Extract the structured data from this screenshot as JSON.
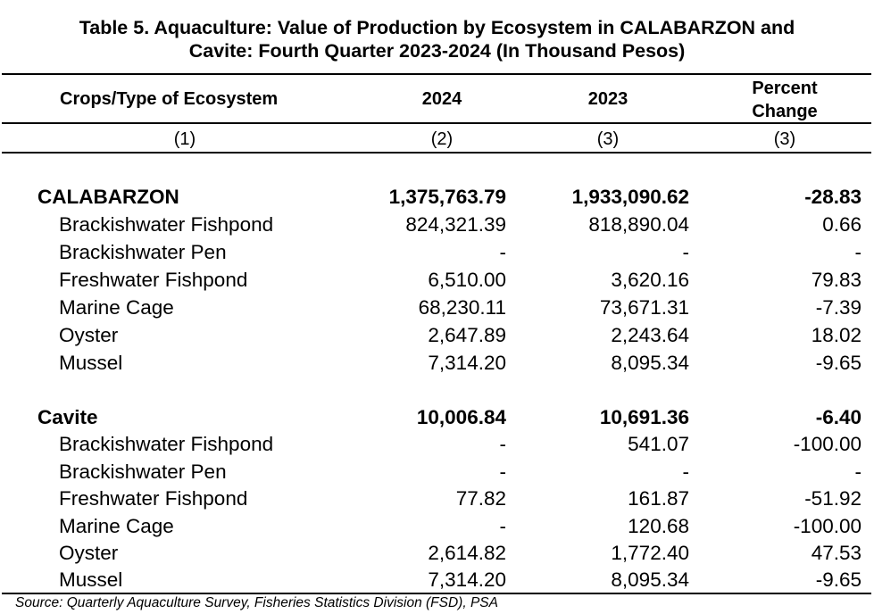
{
  "title_line1": "Table 5. Aquaculture: Value of Production by Ecosystem in CALABARZON and",
  "title_line2": "Cavite: Fourth Quarter 2023-2024 (In Thousand Pesos)",
  "headers": {
    "col0": "Crops/Type of Ecosystem",
    "col1": "2024",
    "col2": "2023",
    "col3_line1": "Percent",
    "col3_line2": "Change"
  },
  "col_numbers": [
    "(1)",
    "(2)",
    "(3)",
    "(3)"
  ],
  "groups": [
    {
      "total": {
        "name": "CALABARZON",
        "v2024": "1,375,763.79",
        "v2023": "1,933,090.62",
        "pct": "-28.83"
      },
      "rows": [
        {
          "name": "Brackishwater Fishpond",
          "v2024": "824,321.39",
          "v2023": "818,890.04",
          "pct": "0.66"
        },
        {
          "name": "Brackishwater Pen",
          "v2024": "-",
          "v2023": "-",
          "pct": "-"
        },
        {
          "name": "Freshwater Fishpond",
          "v2024": "6,510.00",
          "v2023": "3,620.16",
          "pct": "79.83"
        },
        {
          "name": "Marine Cage",
          "v2024": "68,230.11",
          "v2023": "73,671.31",
          "pct": "-7.39"
        },
        {
          "name": "Oyster",
          "v2024": "2,647.89",
          "v2023": "2,243.64",
          "pct": "18.02"
        },
        {
          "name": "Mussel",
          "v2024": "7,314.20",
          "v2023": "8,095.34",
          "pct": "-9.65"
        }
      ]
    },
    {
      "total": {
        "name": "Cavite",
        "v2024": "10,006.84",
        "v2023": "10,691.36",
        "pct": "-6.40"
      },
      "rows": [
        {
          "name": "Brackishwater Fishpond",
          "v2024": "-",
          "v2023": "541.07",
          "pct": "-100.00"
        },
        {
          "name": "Brackishwater Pen",
          "v2024": "-",
          "v2023": "-",
          "pct": "-"
        },
        {
          "name": "Freshwater Fishpond",
          "v2024": "77.82",
          "v2023": "161.87",
          "pct": "-51.92"
        },
        {
          "name": "Marine Cage",
          "v2024": "-",
          "v2023": "120.68",
          "pct": "-100.00"
        },
        {
          "name": "Oyster",
          "v2024": "2,614.82",
          "v2023": "1,772.40",
          "pct": "47.53"
        },
        {
          "name": "Mussel",
          "v2024": "7,314.20",
          "v2023": "8,095.34",
          "pct": "-9.65"
        }
      ]
    }
  ],
  "source": "Source: Quarterly Aquaculture Survey, Fisheries Statistics Division (FSD), PSA"
}
